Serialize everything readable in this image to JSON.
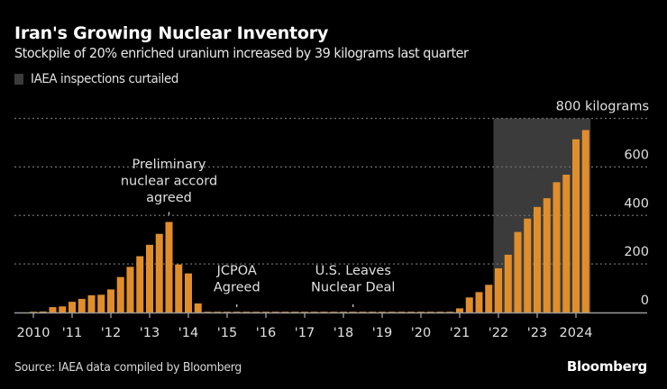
{
  "header": {
    "title": "Iran's Growing Nuclear Inventory",
    "subtitle": "Stockpile of 20% enriched uranium increased by 39 kilograms last quarter"
  },
  "legend": {
    "label": "IAEA inspections curtailed",
    "swatch_color": "#3b3b3b"
  },
  "footer": {
    "source": "Source: IAEA data compiled by Bloomberg",
    "brand": "Bloomberg"
  },
  "colors": {
    "bar": "#e08e2b",
    "shade": "#3b3b3b",
    "grid": "#6e6e6e",
    "axis": "#9a9a9a",
    "background": "#000000"
  },
  "chart_data": {
    "type": "bar",
    "title": "Iran's Growing Nuclear Inventory",
    "subtitle": "Stockpile of 20% enriched uranium increased by 39 kilograms last quarter",
    "xlabel": "",
    "ylabel": "kilograms",
    "ylim": [
      0,
      800
    ],
    "yticks": [
      {
        "value": 800,
        "label": "800 kilograms"
      },
      {
        "value": 600,
        "label": "600"
      },
      {
        "value": 400,
        "label": "400"
      },
      {
        "value": 200,
        "label": "200"
      },
      {
        "value": 0,
        "label": "0"
      }
    ],
    "grid": true,
    "y_axis_side": "right",
    "xticks": [
      {
        "year": 2010,
        "label": "2010"
      },
      {
        "year": 2011,
        "label": "'11"
      },
      {
        "year": 2012,
        "label": "'12"
      },
      {
        "year": 2013,
        "label": "'13"
      },
      {
        "year": 2014,
        "label": "'14"
      },
      {
        "year": 2015,
        "label": "'15"
      },
      {
        "year": 2016,
        "label": "'16"
      },
      {
        "year": 2017,
        "label": "'17"
      },
      {
        "year": 2018,
        "label": "'18"
      },
      {
        "year": 2019,
        "label": "'19"
      },
      {
        "year": 2020,
        "label": "'20"
      },
      {
        "year": 2021,
        "label": "'21"
      },
      {
        "year": 2022,
        "label": "'22"
      },
      {
        "year": 2023,
        "label": "'23"
      },
      {
        "year": 2024,
        "label": "2024"
      }
    ],
    "categories": [
      "2010 Q1",
      "2010 Q2",
      "2010 Q3",
      "2010 Q4",
      "2011 Q1",
      "2011 Q2",
      "2011 Q3",
      "2011 Q4",
      "2012 Q1",
      "2012 Q2",
      "2012 Q3",
      "2012 Q4",
      "2013 Q1",
      "2013 Q2",
      "2013 Q3",
      "2013 Q4",
      "2014 Q1",
      "2014 Q2",
      "2014 Q3",
      "2014 Q4",
      "2015 Q1",
      "2015 Q2",
      "2015 Q3",
      "2015 Q4",
      "2016 Q1",
      "2016 Q2",
      "2016 Q3",
      "2016 Q4",
      "2017 Q1",
      "2017 Q2",
      "2017 Q3",
      "2017 Q4",
      "2018 Q1",
      "2018 Q2",
      "2018 Q3",
      "2018 Q4",
      "2019 Q1",
      "2019 Q2",
      "2019 Q3",
      "2019 Q4",
      "2020 Q1",
      "2020 Q2",
      "2020 Q3",
      "2020 Q4",
      "2021 Q1",
      "2021 Q2",
      "2021 Q3",
      "2021 Q4",
      "2022 Q1",
      "2022 Q2",
      "2022 Q3",
      "2022 Q4",
      "2023 Q1",
      "2023 Q2",
      "2023 Q3",
      "2023 Q4",
      "2024 Q1",
      "2024 Q2"
    ],
    "values": [
      1,
      4,
      22,
      25,
      44,
      56,
      71,
      73,
      95,
      146,
      188,
      232,
      279,
      324,
      373,
      198,
      161,
      37,
      0,
      0,
      0,
      0,
      0,
      0,
      0,
      0,
      0,
      0,
      0,
      0,
      0,
      0,
      0,
      0,
      0,
      0,
      0,
      0,
      0,
      0,
      0,
      0,
      0,
      0,
      17,
      62,
      84,
      114,
      182,
      238,
      332,
      387,
      435,
      471,
      537,
      568,
      714,
      752
    ],
    "shaded_region": {
      "label": "IAEA inspections curtailed",
      "from": "2022 Q1",
      "to": "2024 Q2"
    },
    "annotations": [
      {
        "text": [
          "Preliminary",
          "nuclear accord",
          "agreed"
        ],
        "at": "2013 Q3"
      },
      {
        "text": [
          "JCPOA",
          "Agreed"
        ],
        "at": "2015 Q2"
      },
      {
        "text": [
          "U.S. Leaves",
          "Nuclear Deal"
        ],
        "at": "2018 Q2"
      }
    ]
  }
}
